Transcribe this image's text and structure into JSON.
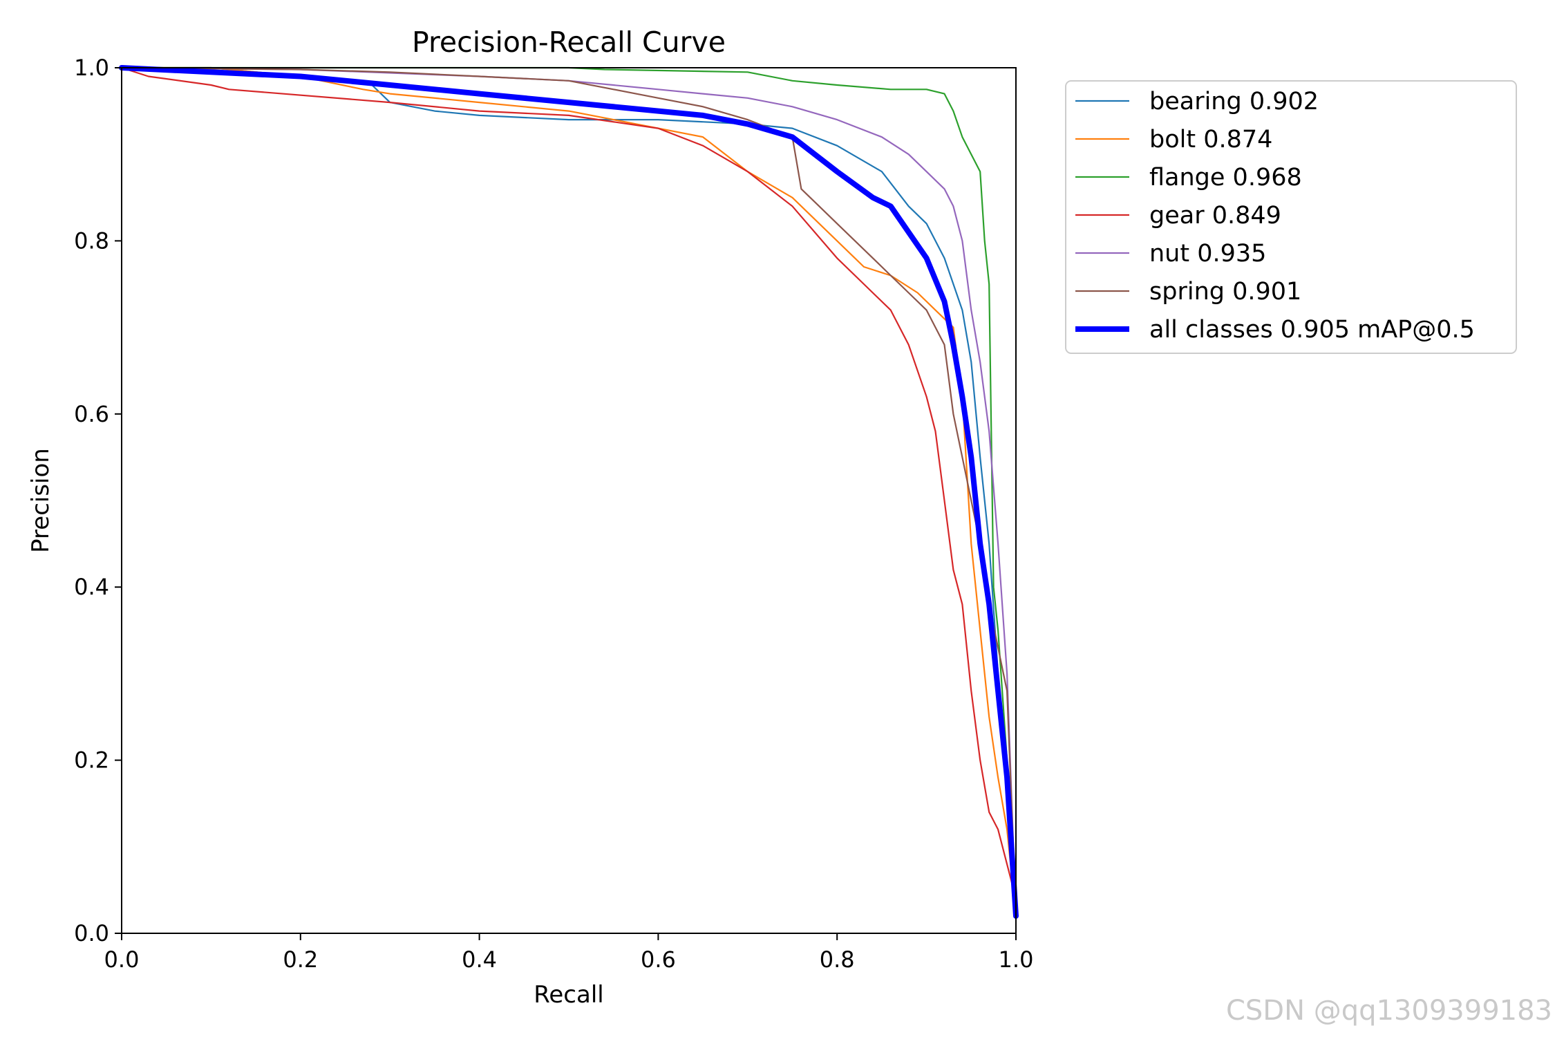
{
  "chart_data": {
    "type": "line",
    "title": "Precision-Recall Curve",
    "xlabel": "Recall",
    "ylabel": "Precision",
    "xlim": [
      0,
      1
    ],
    "ylim": [
      0,
      1
    ],
    "xticks": [
      "0.0",
      "0.2",
      "0.4",
      "0.6",
      "0.8",
      "1.0"
    ],
    "yticks": [
      "0.0",
      "0.2",
      "0.4",
      "0.6",
      "0.8",
      "1.0"
    ],
    "grid": false,
    "legend_position": "outside-top-right",
    "series": [
      {
        "name": "bearing 0.902",
        "color": "#1f77b4",
        "width": "thin",
        "points": [
          [
            0,
            1.0
          ],
          [
            0.1,
            1.0
          ],
          [
            0.2,
            0.99
          ],
          [
            0.28,
            0.98
          ],
          [
            0.3,
            0.96
          ],
          [
            0.35,
            0.95
          ],
          [
            0.4,
            0.945
          ],
          [
            0.5,
            0.94
          ],
          [
            0.6,
            0.94
          ],
          [
            0.7,
            0.935
          ],
          [
            0.75,
            0.93
          ],
          [
            0.8,
            0.91
          ],
          [
            0.85,
            0.88
          ],
          [
            0.88,
            0.84
          ],
          [
            0.9,
            0.82
          ],
          [
            0.92,
            0.78
          ],
          [
            0.94,
            0.72
          ],
          [
            0.95,
            0.66
          ],
          [
            0.96,
            0.55
          ],
          [
            0.97,
            0.45
          ],
          [
            0.98,
            0.3
          ],
          [
            0.99,
            0.15
          ],
          [
            1.0,
            0.02
          ]
        ]
      },
      {
        "name": "bolt 0.874",
        "color": "#ff7f0e",
        "width": "thin",
        "points": [
          [
            0,
            1.0
          ],
          [
            0.1,
            1.0
          ],
          [
            0.2,
            0.99
          ],
          [
            0.27,
            0.975
          ],
          [
            0.3,
            0.97
          ],
          [
            0.4,
            0.96
          ],
          [
            0.5,
            0.95
          ],
          [
            0.55,
            0.94
          ],
          [
            0.6,
            0.93
          ],
          [
            0.65,
            0.92
          ],
          [
            0.7,
            0.88
          ],
          [
            0.75,
            0.85
          ],
          [
            0.8,
            0.8
          ],
          [
            0.83,
            0.77
          ],
          [
            0.86,
            0.76
          ],
          [
            0.89,
            0.74
          ],
          [
            0.91,
            0.72
          ],
          [
            0.93,
            0.7
          ],
          [
            0.94,
            0.62
          ],
          [
            0.95,
            0.45
          ],
          [
            0.96,
            0.35
          ],
          [
            0.97,
            0.25
          ],
          [
            0.98,
            0.18
          ],
          [
            0.99,
            0.12
          ],
          [
            1.0,
            0.02
          ]
        ]
      },
      {
        "name": "flange 0.968",
        "color": "#2ca02c",
        "width": "thin",
        "points": [
          [
            0,
            1.0
          ],
          [
            0.5,
            1.0
          ],
          [
            0.54,
            0.998
          ],
          [
            0.7,
            0.995
          ],
          [
            0.75,
            0.985
          ],
          [
            0.8,
            0.98
          ],
          [
            0.86,
            0.975
          ],
          [
            0.9,
            0.975
          ],
          [
            0.92,
            0.97
          ],
          [
            0.93,
            0.95
          ],
          [
            0.94,
            0.92
          ],
          [
            0.95,
            0.9
          ],
          [
            0.96,
            0.88
          ],
          [
            0.965,
            0.8
          ],
          [
            0.97,
            0.75
          ],
          [
            0.975,
            0.4
          ],
          [
            0.98,
            0.35
          ],
          [
            0.99,
            0.2
          ],
          [
            1.0,
            0.02
          ]
        ]
      },
      {
        "name": "gear 0.849",
        "color": "#d62728",
        "width": "thin",
        "points": [
          [
            0,
            1.0
          ],
          [
            0.03,
            0.99
          ],
          [
            0.1,
            0.98
          ],
          [
            0.12,
            0.975
          ],
          [
            0.3,
            0.96
          ],
          [
            0.4,
            0.95
          ],
          [
            0.5,
            0.945
          ],
          [
            0.6,
            0.93
          ],
          [
            0.65,
            0.91
          ],
          [
            0.7,
            0.88
          ],
          [
            0.75,
            0.84
          ],
          [
            0.8,
            0.78
          ],
          [
            0.83,
            0.75
          ],
          [
            0.86,
            0.72
          ],
          [
            0.88,
            0.68
          ],
          [
            0.9,
            0.62
          ],
          [
            0.91,
            0.58
          ],
          [
            0.92,
            0.5
          ],
          [
            0.93,
            0.42
          ],
          [
            0.94,
            0.38
          ],
          [
            0.95,
            0.28
          ],
          [
            0.96,
            0.2
          ],
          [
            0.97,
            0.14
          ],
          [
            0.98,
            0.12
          ],
          [
            1.0,
            0.04
          ]
        ]
      },
      {
        "name": "nut 0.935",
        "color": "#9467bd",
        "width": "thin",
        "points": [
          [
            0,
            1.0
          ],
          [
            0.2,
            0.998
          ],
          [
            0.4,
            0.99
          ],
          [
            0.5,
            0.985
          ],
          [
            0.6,
            0.975
          ],
          [
            0.65,
            0.97
          ],
          [
            0.7,
            0.965
          ],
          [
            0.75,
            0.955
          ],
          [
            0.8,
            0.94
          ],
          [
            0.85,
            0.92
          ],
          [
            0.88,
            0.9
          ],
          [
            0.9,
            0.88
          ],
          [
            0.92,
            0.86
          ],
          [
            0.93,
            0.84
          ],
          [
            0.94,
            0.8
          ],
          [
            0.95,
            0.72
          ],
          [
            0.96,
            0.66
          ],
          [
            0.97,
            0.58
          ],
          [
            0.98,
            0.45
          ],
          [
            0.99,
            0.3
          ],
          [
            1.0,
            0.02
          ]
        ]
      },
      {
        "name": "spring 0.901",
        "color": "#8c564b",
        "width": "thin",
        "points": [
          [
            0,
            1.0
          ],
          [
            0.2,
            0.998
          ],
          [
            0.3,
            0.995
          ],
          [
            0.4,
            0.99
          ],
          [
            0.5,
            0.985
          ],
          [
            0.55,
            0.975
          ],
          [
            0.6,
            0.965
          ],
          [
            0.65,
            0.955
          ],
          [
            0.7,
            0.94
          ],
          [
            0.75,
            0.92
          ],
          [
            0.76,
            0.86
          ],
          [
            0.78,
            0.84
          ],
          [
            0.8,
            0.82
          ],
          [
            0.82,
            0.8
          ],
          [
            0.84,
            0.78
          ],
          [
            0.86,
            0.76
          ],
          [
            0.88,
            0.74
          ],
          [
            0.9,
            0.72
          ],
          [
            0.92,
            0.68
          ],
          [
            0.93,
            0.6
          ],
          [
            0.94,
            0.55
          ],
          [
            0.95,
            0.5
          ],
          [
            0.96,
            0.45
          ],
          [
            0.97,
            0.38
          ],
          [
            0.98,
            0.33
          ],
          [
            0.99,
            0.28
          ],
          [
            1.0,
            0.02
          ]
        ]
      },
      {
        "name": "all classes 0.905 mAP@0.5",
        "color": "#0000ff",
        "width": "thick",
        "points": [
          [
            0,
            1.0
          ],
          [
            0.1,
            0.995
          ],
          [
            0.2,
            0.99
          ],
          [
            0.3,
            0.98
          ],
          [
            0.4,
            0.97
          ],
          [
            0.5,
            0.96
          ],
          [
            0.6,
            0.95
          ],
          [
            0.65,
            0.945
          ],
          [
            0.7,
            0.935
          ],
          [
            0.75,
            0.92
          ],
          [
            0.8,
            0.88
          ],
          [
            0.84,
            0.85
          ],
          [
            0.86,
            0.84
          ],
          [
            0.88,
            0.81
          ],
          [
            0.9,
            0.78
          ],
          [
            0.92,
            0.73
          ],
          [
            0.93,
            0.68
          ],
          [
            0.94,
            0.62
          ],
          [
            0.95,
            0.55
          ],
          [
            0.96,
            0.45
          ],
          [
            0.97,
            0.38
          ],
          [
            0.98,
            0.28
          ],
          [
            0.99,
            0.18
          ],
          [
            1.0,
            0.02
          ]
        ]
      }
    ]
  },
  "watermark": "CSDN @qq1309399183"
}
